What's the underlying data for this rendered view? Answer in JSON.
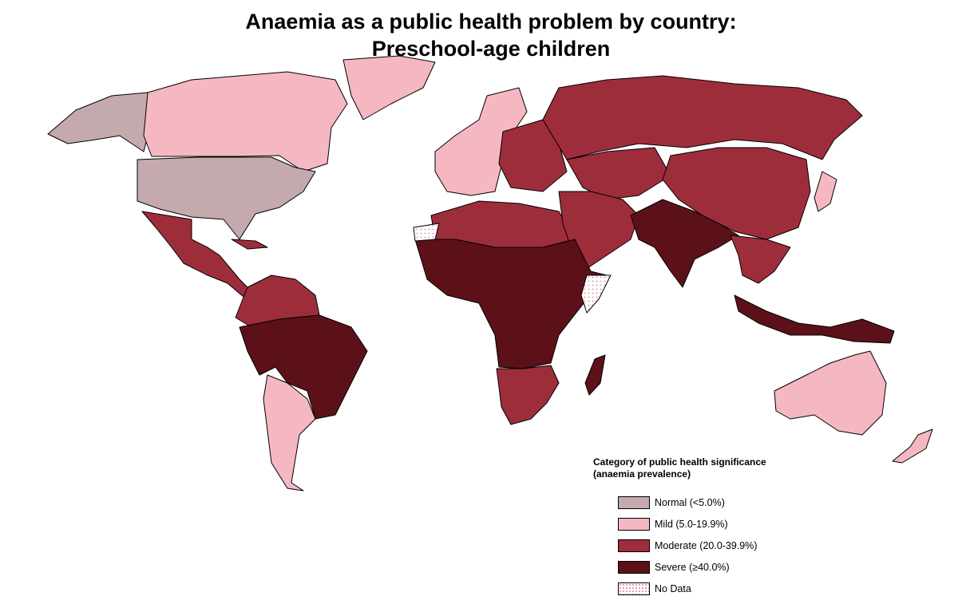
{
  "title": {
    "line1": "Anaemia as a public health problem by country:",
    "line2": "Preschool-age children"
  },
  "colors": {
    "normal": "#c4a9ad",
    "mild": "#f5b8c2",
    "moderate": "#9e2d3c",
    "severe": "#5c1119",
    "nodata_dots": "#d48a96",
    "border": "#000000"
  },
  "legend": {
    "title_line1": "Category of public health significance",
    "title_line2": "(anaemia prevalence)",
    "items": [
      {
        "key": "normal",
        "label": "Normal (<5.0%)"
      },
      {
        "key": "mild",
        "label": "Mild (5.0-19.9%)"
      },
      {
        "key": "moderate",
        "label": "Moderate (20.0-39.9%)"
      },
      {
        "key": "severe",
        "label": "Severe (≥40.0%)"
      },
      {
        "key": "nodata",
        "label": "No Data"
      }
    ]
  },
  "regions": [
    {
      "name": "alaska",
      "category": "normal"
    },
    {
      "name": "canada",
      "category": "mild"
    },
    {
      "name": "greenland",
      "category": "mild"
    },
    {
      "name": "usa",
      "category": "normal"
    },
    {
      "name": "mexico-central-america",
      "category": "moderate"
    },
    {
      "name": "caribbean",
      "category": "moderate"
    },
    {
      "name": "northern-south-america",
      "category": "moderate"
    },
    {
      "name": "brazil-andes",
      "category": "severe"
    },
    {
      "name": "southern-cone",
      "category": "mild"
    },
    {
      "name": "western-europe",
      "category": "mild"
    },
    {
      "name": "eastern-europe",
      "category": "moderate"
    },
    {
      "name": "russia",
      "category": "moderate"
    },
    {
      "name": "central-asia",
      "category": "moderate"
    },
    {
      "name": "china",
      "category": "moderate"
    },
    {
      "name": "japan",
      "category": "mild"
    },
    {
      "name": "north-africa",
      "category": "moderate"
    },
    {
      "name": "middle-east",
      "category": "moderate"
    },
    {
      "name": "sub-saharan-africa",
      "category": "severe"
    },
    {
      "name": "southern-africa",
      "category": "moderate"
    },
    {
      "name": "madagascar",
      "category": "severe"
    },
    {
      "name": "south-asia",
      "category": "severe"
    },
    {
      "name": "southeast-asia",
      "category": "moderate"
    },
    {
      "name": "indonesia-png",
      "category": "severe"
    },
    {
      "name": "australia",
      "category": "mild"
    },
    {
      "name": "new-zealand",
      "category": "mild"
    },
    {
      "name": "western-sahara",
      "category": "nodata"
    },
    {
      "name": "somalia",
      "category": "nodata"
    }
  ]
}
